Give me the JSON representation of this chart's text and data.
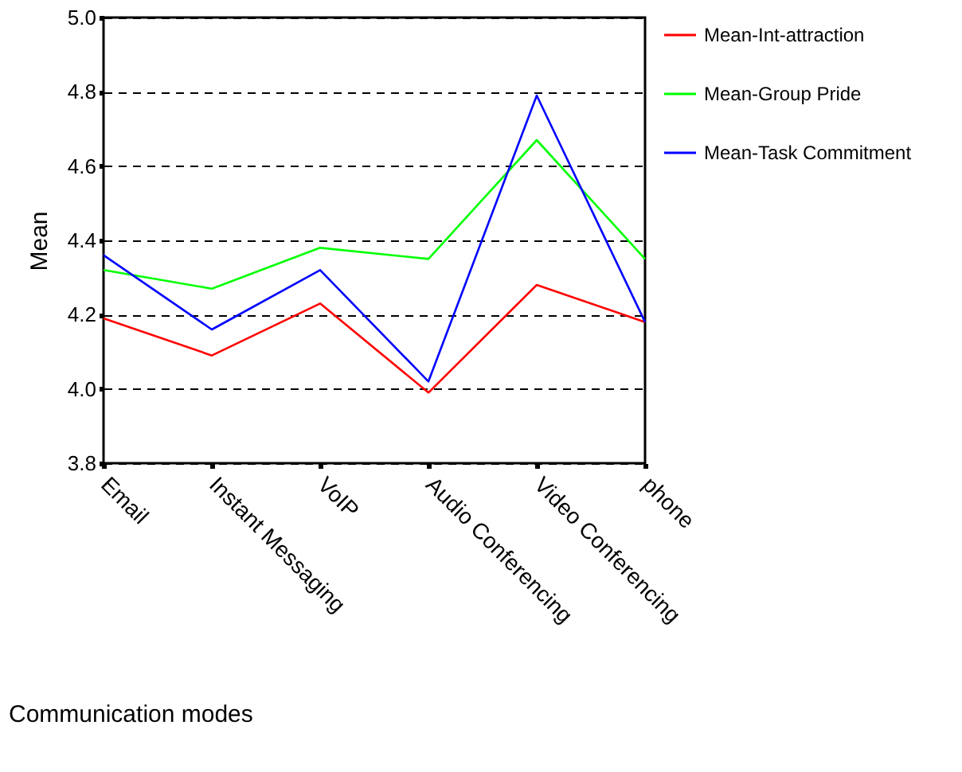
{
  "chart_data": {
    "type": "line",
    "xlabel": "Communication modes",
    "ylabel": "Mean",
    "categories": [
      "Email",
      "Instant Messaging",
      "VoIP",
      "Audio Conferencing",
      "Video Conferencing",
      "phone"
    ],
    "series": [
      {
        "name": "Mean-Int-attraction",
        "color": "#ff0000",
        "values": [
          4.19,
          4.09,
          4.23,
          3.99,
          4.28,
          4.18
        ]
      },
      {
        "name": "Mean-Group Pride",
        "color": "#00ff00",
        "values": [
          4.32,
          4.27,
          4.38,
          4.35,
          4.67,
          4.35
        ]
      },
      {
        "name": "Mean-Task Commitment",
        "color": "#0000ff",
        "values": [
          4.36,
          4.16,
          4.32,
          4.02,
          4.79,
          4.18
        ]
      }
    ],
    "ylim": [
      3.8,
      5.0
    ],
    "yticks": [
      {
        "value": 3.8,
        "label": "3.8"
      },
      {
        "value": 4,
        "label": "4.0"
      },
      {
        "value": 4.2,
        "label": "4.2"
      },
      {
        "value": 4.4,
        "label": "4.4"
      },
      {
        "value": 4.6,
        "label": "4.6"
      },
      {
        "value": 4.8,
        "label": "4.8"
      },
      {
        "value": 5,
        "label": "5.0"
      }
    ],
    "grid": "y",
    "legend": "right",
    "marker": "none",
    "line_style": "solid"
  }
}
